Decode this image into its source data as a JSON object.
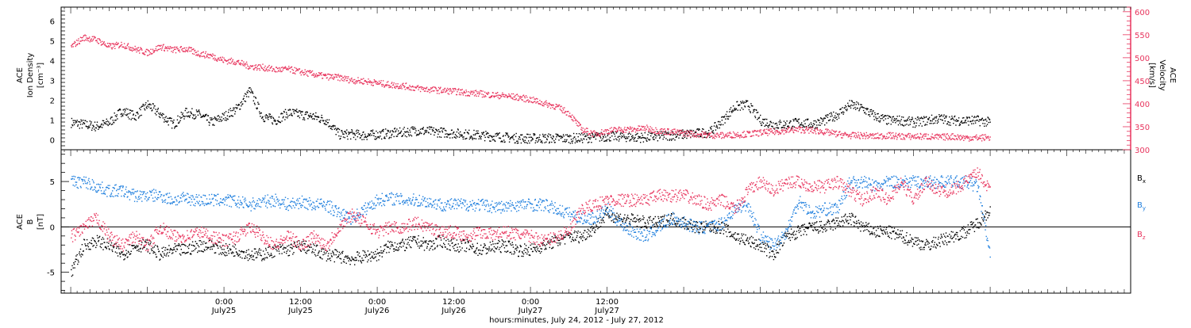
{
  "chart_data": [
    {
      "type": "scatter",
      "panel": "top",
      "ylabel_left": [
        "ACE",
        "Ion Density",
        "[cm⁻³]"
      ],
      "ylabel_right": [
        "ACE",
        "Velocity",
        "[km/s]"
      ],
      "left_ylim": [
        -0.5,
        6.7
      ],
      "left_ticks": [
        0,
        1,
        2,
        3,
        4,
        5,
        6
      ],
      "right_ylim": [
        300,
        610
      ],
      "right_ticks": [
        300,
        350,
        400,
        450,
        500,
        550,
        600
      ],
      "colors": {
        "density": "#000000",
        "velocity": "#e8355e",
        "right_axis": "#e8355e"
      },
      "series": [
        {
          "id": "density",
          "axis": "left",
          "x_hours": [
            0,
            2,
            4,
            6,
            8,
            10,
            12,
            14,
            16,
            18,
            20,
            22,
            24,
            26,
            28,
            30,
            32,
            34,
            36,
            38,
            40,
            42,
            44,
            46,
            48,
            50,
            52,
            54,
            56,
            58,
            60,
            62,
            64,
            66,
            68,
            70,
            72,
            74,
            76,
            78,
            80,
            82,
            84,
            86,
            88,
            90,
            92,
            94,
            96,
            98,
            100,
            102,
            104,
            106,
            108,
            110,
            112,
            114,
            116,
            118,
            120,
            122,
            124,
            126,
            128,
            130,
            132,
            134,
            136,
            138,
            140,
            142,
            144
          ],
          "values": [
            0.9,
            0.8,
            0.7,
            0.9,
            1.5,
            1.2,
            1.8,
            1.3,
            0.8,
            1.4,
            1.3,
            0.9,
            1.2,
            1.6,
            2.5,
            1.2,
            1.0,
            1.4,
            1.3,
            1.2,
            1.0,
            0.3,
            0.3,
            0.25,
            0.3,
            0.35,
            0.4,
            0.5,
            0.45,
            0.4,
            0.35,
            0.3,
            0.25,
            0.2,
            0.15,
            0.1,
            0.1,
            0.1,
            0.1,
            0.1,
            0.12,
            0.15,
            0.2,
            0.2,
            0.15,
            0.15,
            0.2,
            0.25,
            0.3,
            0.35,
            0.4,
            1.0,
            1.7,
            1.8,
            1.0,
            0.8,
            0.8,
            0.9,
            0.8,
            1.0,
            1.3,
            1.8,
            1.6,
            1.2,
            1.0,
            1.0,
            0.9,
            1.0,
            1.1,
            1.0,
            1.0,
            1.0,
            0.9
          ]
        },
        {
          "id": "velocity",
          "axis": "right",
          "x_hours": [
            0,
            2,
            4,
            6,
            8,
            10,
            12,
            14,
            16,
            18,
            20,
            22,
            24,
            26,
            28,
            30,
            32,
            34,
            36,
            38,
            40,
            42,
            44,
            46,
            48,
            50,
            52,
            54,
            56,
            58,
            60,
            62,
            64,
            66,
            68,
            70,
            72,
            74,
            76,
            78,
            80,
            82,
            84,
            86,
            88,
            90,
            92,
            94,
            96,
            98,
            100,
            102,
            104,
            106,
            108,
            110,
            112,
            114,
            116,
            118,
            120,
            122,
            124,
            126,
            128,
            130,
            132,
            134,
            136,
            138,
            140,
            142,
            144
          ],
          "values": [
            525,
            545,
            540,
            525,
            530,
            520,
            512,
            525,
            518,
            520,
            510,
            505,
            495,
            492,
            482,
            480,
            475,
            476,
            470,
            465,
            460,
            458,
            452,
            450,
            446,
            442,
            440,
            435,
            432,
            430,
            428,
            425,
            423,
            420,
            418,
            415,
            410,
            402,
            395,
            380,
            345,
            335,
            342,
            345,
            345,
            348,
            342,
            340,
            337,
            335,
            333,
            332,
            334,
            335,
            338,
            340,
            343,
            345,
            343,
            340,
            335,
            332,
            332,
            330,
            332,
            330,
            330,
            330,
            328,
            330,
            327,
            327,
            328
          ]
        }
      ]
    },
    {
      "type": "scatter",
      "panel": "bottom",
      "ylabel_left": [
        "ACE",
        "B",
        "[nT]"
      ],
      "left_ylim": [
        -7.3,
        8.5
      ],
      "left_ticks": [
        -5,
        0,
        5
      ],
      "zero_line": true,
      "legend": {
        "placement": "right"
      },
      "series": [
        {
          "id": "bx",
          "name": "B",
          "sub": "x",
          "color": "#000000",
          "x_hours": [
            0,
            2,
            4,
            6,
            8,
            10,
            12,
            14,
            16,
            18,
            20,
            22,
            24,
            26,
            28,
            30,
            32,
            34,
            36,
            38,
            40,
            42,
            44,
            46,
            48,
            50,
            52,
            54,
            56,
            58,
            60,
            62,
            64,
            66,
            68,
            70,
            72,
            74,
            76,
            78,
            80,
            82,
            84,
            86,
            88,
            90,
            92,
            94,
            96,
            98,
            100,
            102,
            104,
            106,
            108,
            110,
            112,
            114,
            116,
            118,
            120,
            122,
            124,
            126,
            128,
            130,
            132,
            134,
            136,
            138,
            140,
            142,
            144
          ],
          "values": [
            -5,
            -2,
            -1.5,
            -2,
            -3,
            -2,
            -2,
            -3,
            -2.5,
            -2.5,
            -2,
            -2,
            -2.5,
            -2.5,
            -3,
            -3,
            -2.5,
            -2.5,
            -2,
            -2.5,
            -3,
            -3.2,
            -3.5,
            -3.2,
            -3,
            -2,
            -2,
            -1.5,
            -2,
            -1.5,
            -2,
            -2,
            -2.5,
            -2.2,
            -2,
            -2.5,
            -2.5,
            -2,
            -1.5,
            -1,
            -1,
            0,
            1.5,
            1,
            0.8,
            0.5,
            0.5,
            1,
            0.5,
            0,
            0,
            0,
            -1,
            -1.5,
            -2,
            -3,
            -1,
            -0.5,
            0,
            0,
            0.5,
            1,
            0,
            -0.5,
            -0.5,
            -1,
            -1.5,
            -2,
            -1.5,
            -1,
            -0.5,
            0.5,
            2
          ]
        },
        {
          "id": "by",
          "name": "B",
          "sub": "y",
          "color": "#1f7fde",
          "x_hours": [
            0,
            2,
            4,
            6,
            8,
            10,
            12,
            14,
            16,
            18,
            20,
            22,
            24,
            26,
            28,
            30,
            32,
            34,
            36,
            38,
            40,
            42,
            44,
            46,
            48,
            50,
            52,
            54,
            56,
            58,
            60,
            62,
            64,
            66,
            68,
            70,
            72,
            74,
            76,
            78,
            80,
            82,
            84,
            86,
            88,
            90,
            92,
            94,
            96,
            98,
            100,
            102,
            104,
            106,
            108,
            110,
            112,
            114,
            116,
            118,
            120,
            122,
            124,
            126,
            128,
            130,
            132,
            134,
            136,
            138,
            140,
            142,
            144
          ],
          "values": [
            5,
            5,
            4.5,
            4,
            4,
            3.5,
            3.5,
            3.5,
            3,
            3.2,
            3,
            3,
            3,
            2.8,
            2.5,
            2.8,
            3,
            2.5,
            2.8,
            2.5,
            2.5,
            1.5,
            1,
            2,
            3,
            3.2,
            3,
            3,
            2.8,
            2.5,
            2.5,
            2.5,
            2.5,
            2.3,
            2.2,
            2.5,
            2.5,
            2.5,
            2,
            1.5,
            1,
            1,
            2,
            0.5,
            -0.5,
            -1,
            0,
            1,
            0.5,
            0,
            0,
            0.5,
            2,
            2.5,
            -1,
            -2,
            -0.5,
            3,
            1.5,
            2,
            2,
            5,
            5,
            4.5,
            5,
            5,
            5,
            5,
            5,
            5,
            5,
            4.5,
            -3.5
          ]
        },
        {
          "id": "bz",
          "name": "B",
          "sub": "z",
          "color": "#e8355e",
          "x_hours": [
            0,
            2,
            4,
            6,
            8,
            10,
            12,
            14,
            16,
            18,
            20,
            22,
            24,
            26,
            28,
            30,
            32,
            34,
            36,
            38,
            40,
            42,
            44,
            46,
            48,
            50,
            52,
            54,
            56,
            58,
            60,
            62,
            64,
            66,
            68,
            70,
            72,
            74,
            76,
            78,
            80,
            82,
            84,
            86,
            88,
            90,
            92,
            94,
            96,
            98,
            100,
            102,
            104,
            106,
            108,
            110,
            112,
            114,
            116,
            118,
            120,
            122,
            124,
            126,
            128,
            130,
            132,
            134,
            136,
            138,
            140,
            142,
            144
          ],
          "values": [
            -1,
            0,
            1,
            -1,
            -2,
            -1,
            -2,
            0,
            -1,
            -1,
            -0.5,
            -1,
            -1.5,
            -1,
            0,
            -1,
            -2,
            -1,
            -2,
            -1,
            -2,
            0,
            1.5,
            0.5,
            -0.5,
            0,
            0,
            0.5,
            0,
            -0.5,
            -0.5,
            -1,
            -0.5,
            -0.8,
            -0.5,
            -0.8,
            -1,
            -1.5,
            -1,
            -0.5,
            2,
            2.5,
            3,
            3,
            3,
            3,
            3.5,
            3.5,
            3.5,
            3,
            2.5,
            3,
            2,
            4,
            5,
            4,
            5,
            5,
            4.5,
            4.5,
            5,
            4,
            3,
            4,
            3,
            5,
            3,
            5,
            4,
            4,
            5,
            6,
            4
          ]
        }
      ]
    }
  ],
  "x_axis": {
    "range_hours": [
      -1.5,
      166
    ],
    "ticks": [
      {
        "hours": 24,
        "time": "0:00",
        "date": "July25"
      },
      {
        "hours": 36,
        "time": "12:00",
        "date": "July25"
      },
      {
        "hours": 48,
        "time": "0:00",
        "date": "July26"
      },
      {
        "hours": 60,
        "time": "12:00",
        "date": "July26"
      },
      {
        "hours": 72,
        "time": "0:00",
        "date": "July27"
      },
      {
        "hours": 84,
        "time": "12:00",
        "date": "July27"
      }
    ],
    "label": "hours:minutes, July 24, 2012 - July 27, 2012"
  }
}
